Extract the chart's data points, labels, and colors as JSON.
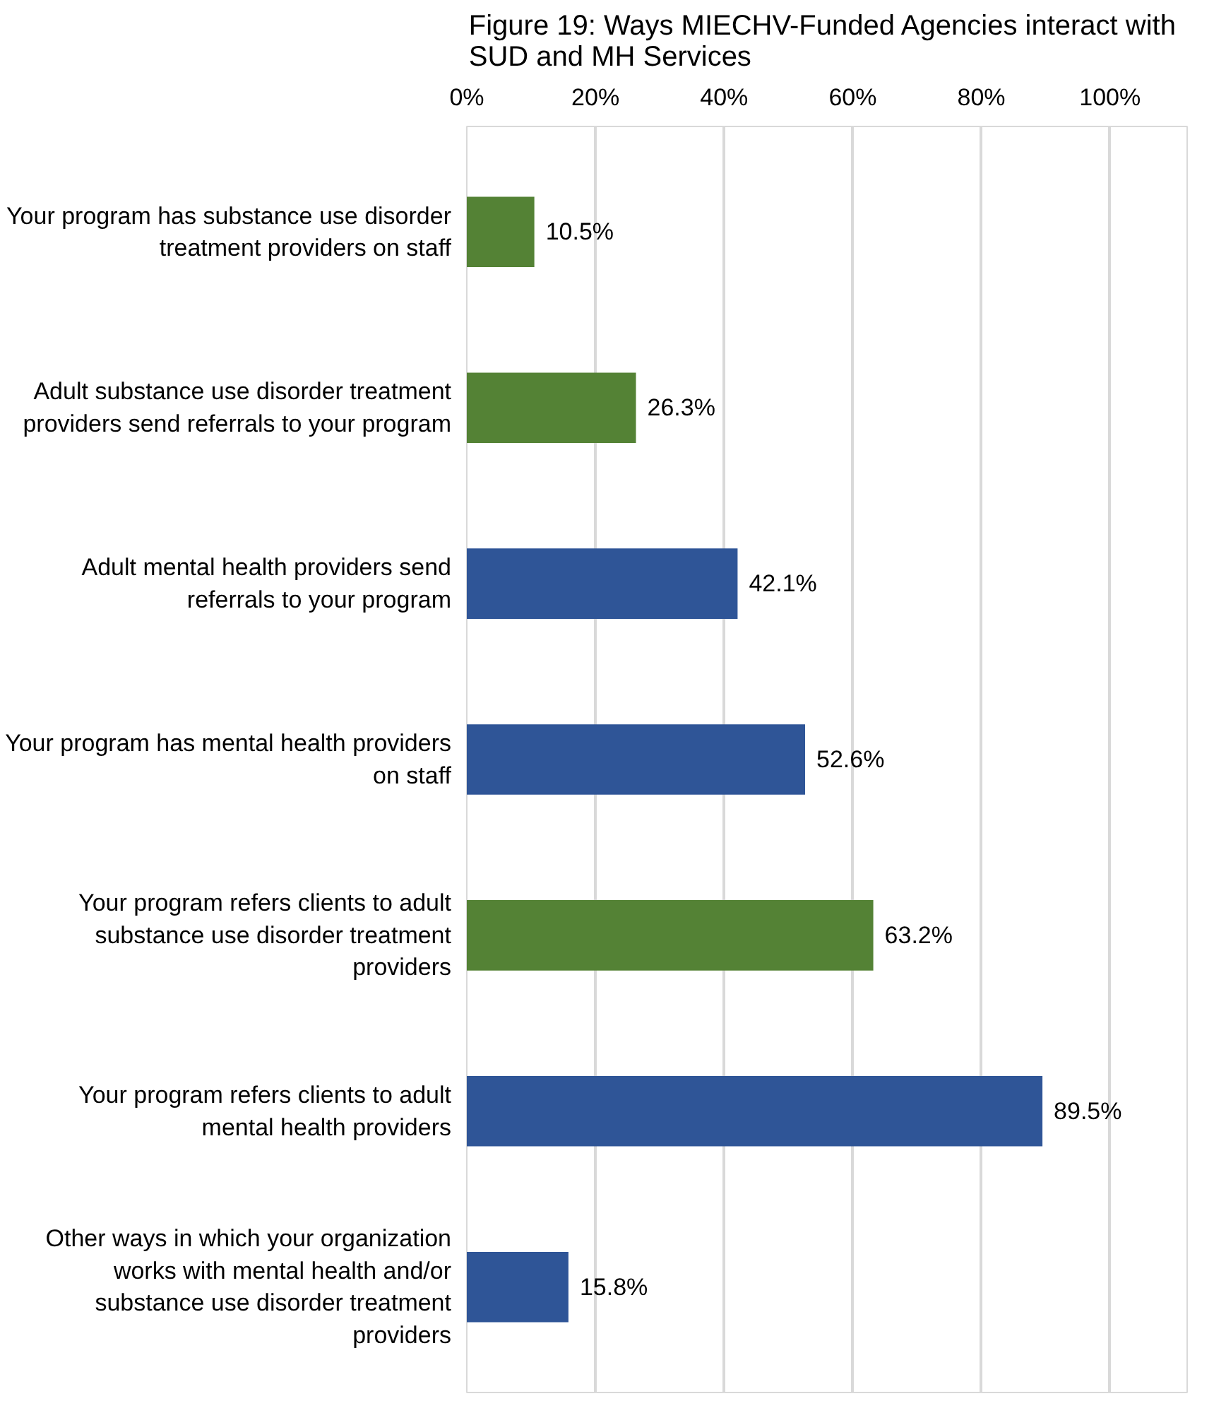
{
  "chart_data": {
    "type": "bar",
    "orientation": "horizontal",
    "title": "Figure 19: Ways MIECHV-Funded Agencies  interact with SUD and MH Services",
    "categories": [
      "Your program has substance use disorder treatment providers on staff",
      "Adult substance use disorder treatment providers send referrals to your program",
      "Adult mental health providers send referrals to your program",
      "Your program has mental health providers on staff",
      "Your program refers clients to adult substance use disorder treatment providers",
      "Your program refers clients to adult mental health providers",
      "Other ways in which your organization works with mental health and/or substance use disorder treatment providers"
    ],
    "values": [
      10.5,
      26.3,
      42.1,
      52.6,
      63.2,
      89.5,
      15.8
    ],
    "colors": [
      "#548235",
      "#548235",
      "#2f5597",
      "#2f5597",
      "#548235",
      "#2f5597",
      "#2f5597"
    ],
    "value_labels": [
      "10.5%",
      "26.3%",
      "42.1%",
      "52.6%",
      "63.2%",
      "89.5%",
      "15.8%"
    ],
    "xlim": [
      0,
      112
    ],
    "xticks": [
      {
        "value": 0,
        "label": "0%"
      },
      {
        "value": 20,
        "label": "20%"
      },
      {
        "value": 40,
        "label": "40%"
      },
      {
        "value": 60,
        "label": "60%"
      },
      {
        "value": 80,
        "label": "80%"
      },
      {
        "value": 100,
        "label": "100%"
      }
    ],
    "grid": "x"
  }
}
